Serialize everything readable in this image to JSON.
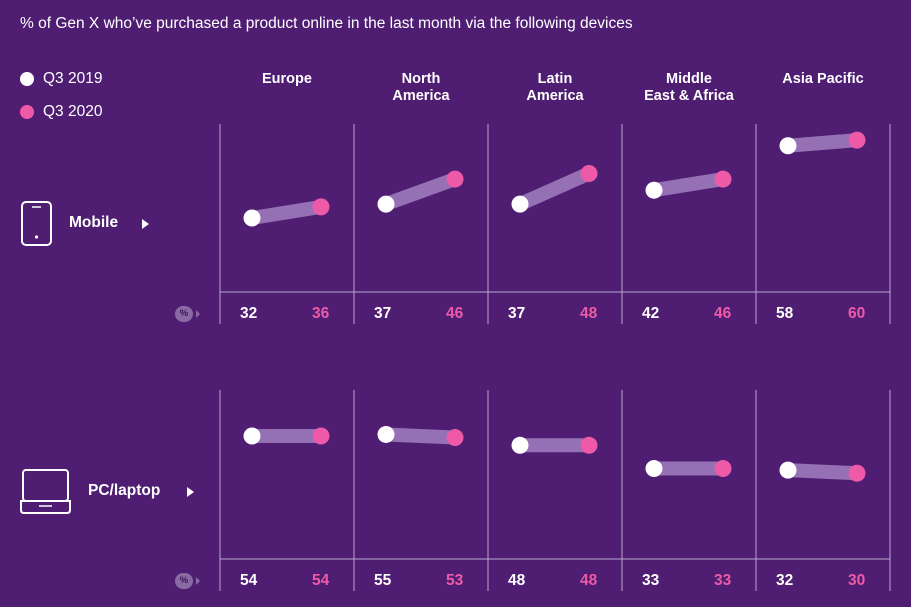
{
  "title": "% of Gen X who’ve purchased a product online in the last month via the following devices",
  "legend": [
    {
      "label": "Q3 2019",
      "color": "#ffffff"
    },
    {
      "label": "Q3 2020",
      "color": "#ee5aa8"
    }
  ],
  "pct_symbol": "%",
  "chart_data": {
    "type": "dumbbell",
    "title": "% of Gen X who’ve purchased a product online in the last month via the following devices",
    "categories": [
      "Europe",
      "North America",
      "Latin America",
      "Middle East & Africa",
      "Asia Pacific"
    ],
    "category_labels": [
      "Europe",
      "North\nAmerica",
      "Latin\nAmerica",
      "Middle\nEast & Africa",
      "Asia Pacific"
    ],
    "series": [
      {
        "name": "Q3 2019",
        "color": "#ffffff"
      },
      {
        "name": "Q3 2020",
        "color": "#ee5aa8"
      }
    ],
    "rows": [
      {
        "label": "Mobile",
        "icon": "mobile-phone-icon",
        "values_2019": [
          32,
          37,
          37,
          42,
          58
        ],
        "values_2020": [
          36,
          46,
          48,
          46,
          60
        ]
      },
      {
        "label": "PC/laptop",
        "icon": "laptop-icon",
        "values_2019": [
          54,
          55,
          48,
          33,
          32
        ],
        "values_2020": [
          54,
          53,
          48,
          33,
          30
        ]
      }
    ],
    "grid": true,
    "legend_position": "top-left"
  }
}
